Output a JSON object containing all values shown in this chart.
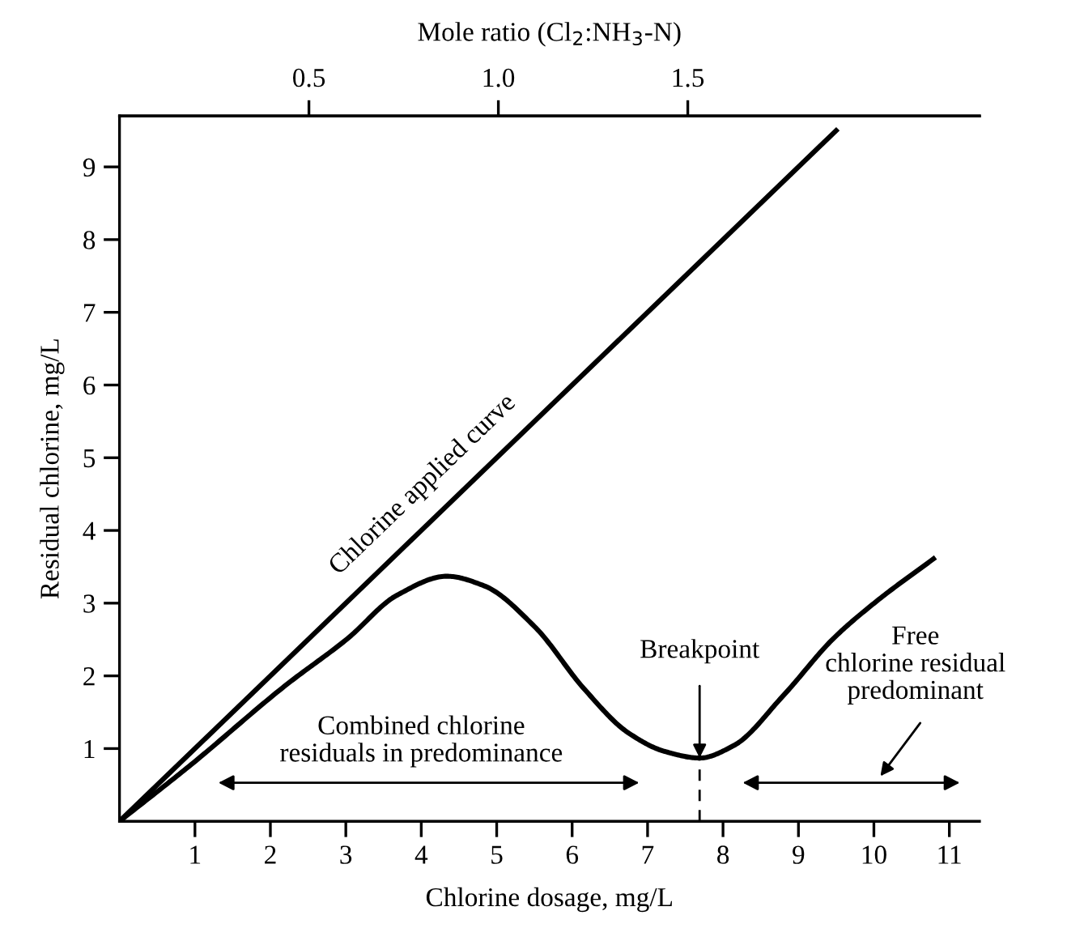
{
  "chart_data": {
    "type": "line",
    "xlabel": "Chlorine dosage, mg/L",
    "ylabel": "Residual chlorine, mg/L",
    "x2label": "Mole ratio (Cl$_{2}$:NH$_{3}$-N)",
    "xlim": [
      0,
      11.4
    ],
    "xticks": [
      1,
      2,
      3,
      4,
      5,
      6,
      7,
      8,
      9,
      10,
      11
    ],
    "ylim": [
      0,
      9.7
    ],
    "yticks": [
      1,
      2,
      3,
      4,
      5,
      6,
      7,
      8,
      9
    ],
    "x2lim": [
      0,
      2.27
    ],
    "x2ticks": [
      0.5,
      {
        "value": 1.0,
        "label": "1.0"
      },
      1.5
    ],
    "series": [
      {
        "name": "Chlorine applied curve",
        "color": "#000000",
        "x": [
          0,
          9.5
        ],
        "values": [
          0,
          9.5
        ]
      },
      {
        "color": "#000000",
        "x": [
          0,
          0.95,
          2.19,
          3.02,
          3.68,
          4.34,
          4.83,
          5.5,
          6.16,
          6.74,
          7.23,
          7.69,
          8.14,
          8.8,
          9.46,
          10.04,
          10.79
        ],
        "values": [
          0,
          0.78,
          1.86,
          2.51,
          3.11,
          3.37,
          3.24,
          2.68,
          1.82,
          1.22,
          0.96,
          0.87,
          1.04,
          1.73,
          2.51,
          3.03,
          3.61
        ]
      }
    ],
    "annotations": [
      {
        "text": "Breakpoint",
        "x": 7.69,
        "y": 0.87
      },
      "Combined chlorine\nresiduals in predominance",
      "Free\nchlorine residual\npredominant"
    ],
    "grid": false,
    "marker": "none",
    "line_style": "solid"
  }
}
